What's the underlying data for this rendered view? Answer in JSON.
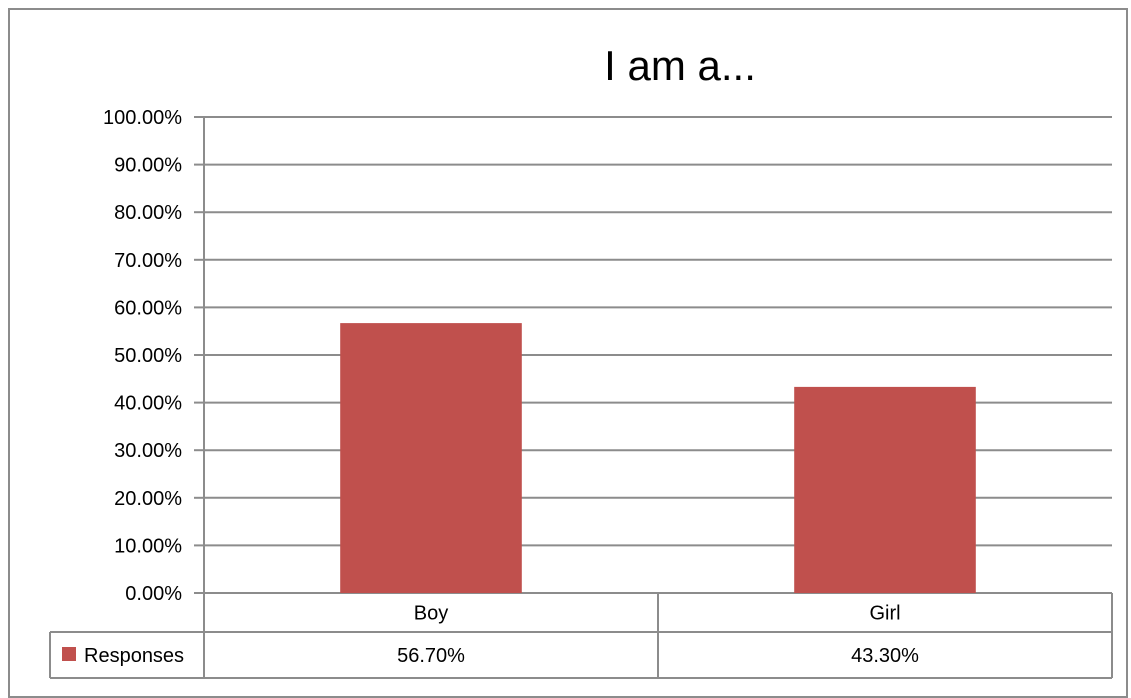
{
  "chart_data": {
    "type": "bar",
    "title": "I am a...",
    "categories": [
      "Boy",
      "Girl"
    ],
    "series": [
      {
        "name": "Responses",
        "values": [
          56.7,
          43.3
        ],
        "labels": [
          "56.70%",
          "43.30%"
        ],
        "color": "#c0504d"
      }
    ],
    "ylim": [
      0,
      100
    ],
    "yticks": [
      0,
      10,
      20,
      30,
      40,
      50,
      60,
      70,
      80,
      90,
      100
    ],
    "ytick_labels": [
      "0.00%",
      "10.00%",
      "20.00%",
      "30.00%",
      "40.00%",
      "50.00%",
      "60.00%",
      "70.00%",
      "80.00%",
      "90.00%",
      "100.00%"
    ],
    "grid": true,
    "data_table": true,
    "gridline_color": "#8c8c8c"
  }
}
